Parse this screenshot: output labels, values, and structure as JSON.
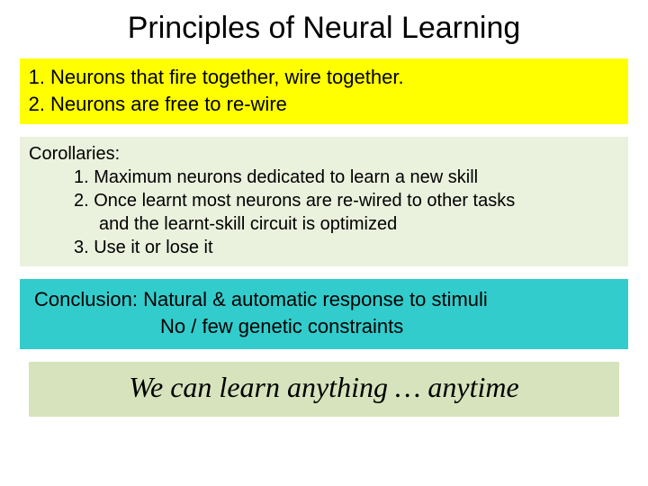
{
  "title": "Principles of Neural Learning",
  "principles": {
    "bg_color": "#ffff00",
    "font_size": 22,
    "items": [
      {
        "num": "1.",
        "text": "Neurons that fire together, wire together."
      },
      {
        "num": "2.",
        "text": "Neurons are free to re-wire"
      }
    ]
  },
  "corollaries": {
    "bg_color": "#eaf1dd",
    "font_size": 20,
    "heading": "Corollaries:",
    "lines": [
      {
        "indent": 1,
        "text": "1. Maximum neurons dedicated to learn a new skill"
      },
      {
        "indent": 1,
        "text": "2. Once learnt most neurons are re-wired to other tasks"
      },
      {
        "indent": 2,
        "text": "and the learnt-skill circuit is optimized"
      },
      {
        "indent": 1,
        "text": "3. Use it or lose it"
      }
    ]
  },
  "conclusion": {
    "bg_color": "#33cccc",
    "font_size": 22,
    "line1": "Conclusion: Natural & automatic response to stimuli",
    "line2": "No / few genetic constraints"
  },
  "tagline": {
    "bg_color": "#d6e3bc",
    "font_size": 32,
    "font_family": "cursive",
    "text": "We can learn anything … anytime"
  },
  "colors": {
    "slide_bg": "#ffffff",
    "text": "#000000"
  }
}
